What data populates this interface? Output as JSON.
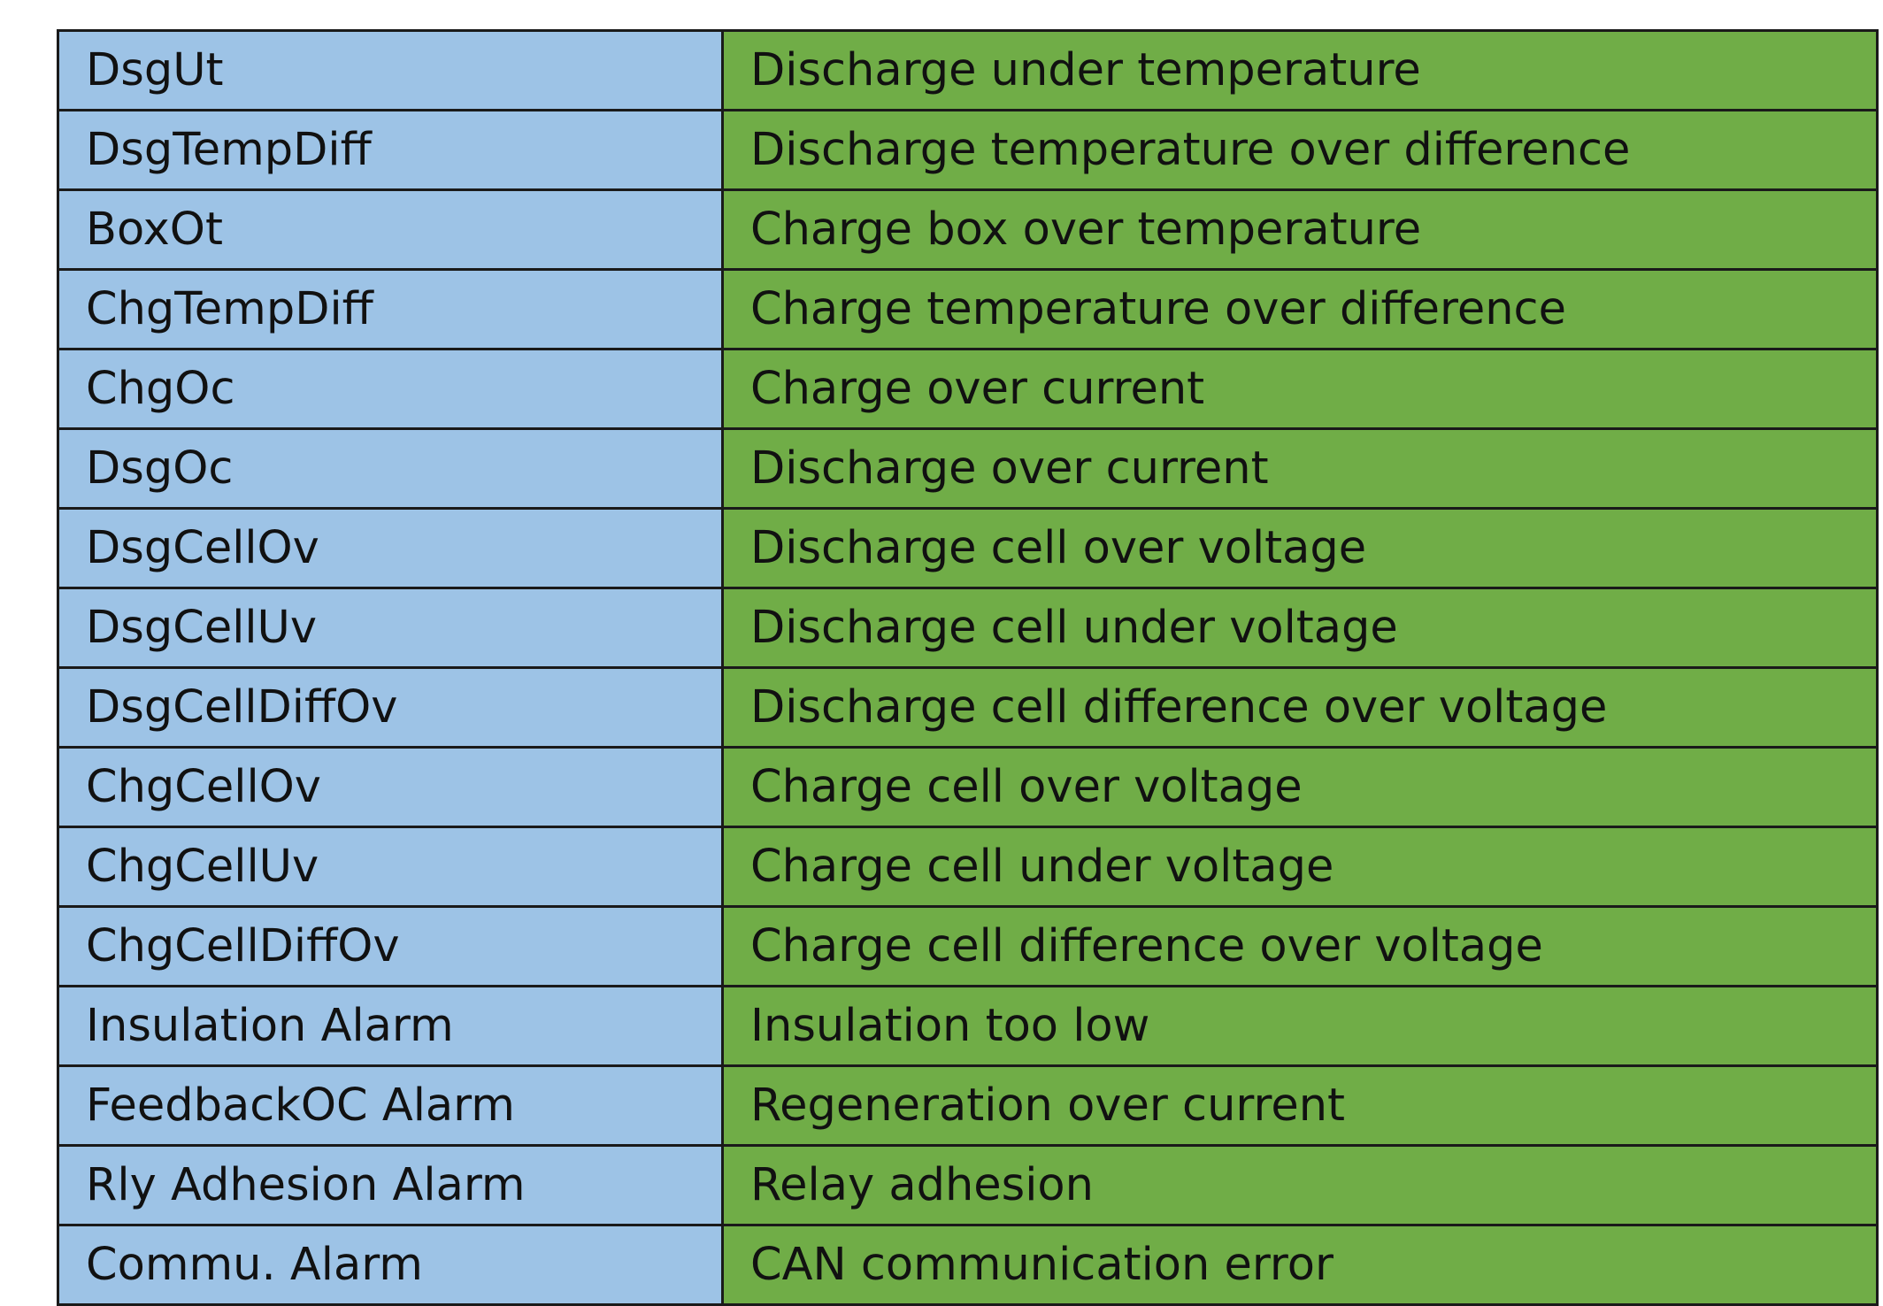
{
  "table": {
    "rows": [
      {
        "code": "DsgUt",
        "description": "Discharge under temperature"
      },
      {
        "code": "DsgTempDiff",
        "description": "Discharge temperature over difference"
      },
      {
        "code": "BoxOt",
        "description": "Charge box over temperature"
      },
      {
        "code": "ChgTempDiff",
        "description": "Charge temperature over difference"
      },
      {
        "code": "ChgOc",
        "description": "Charge over current"
      },
      {
        "code": "DsgOc",
        "description": "Discharge over current"
      },
      {
        "code": "DsgCellOv",
        "description": "Discharge cell over voltage"
      },
      {
        "code": "DsgCellUv",
        "description": "Discharge cell under voltage"
      },
      {
        "code": "DsgCellDiffOv",
        "description": "Discharge cell difference over voltage"
      },
      {
        "code": "ChgCellOv",
        "description": "Charge cell over voltage"
      },
      {
        "code": "ChgCellUv",
        "description": "Charge cell under voltage"
      },
      {
        "code": "ChgCellDiffOv",
        "description": "Charge cell difference over voltage"
      },
      {
        "code": "Insulation Alarm",
        "description": "Insulation too low"
      },
      {
        "code": "FeedbackOC Alarm",
        "description": "Regeneration over current"
      },
      {
        "code": "Rly Adhesion Alarm",
        "description": "Relay adhesion"
      },
      {
        "code": "Commu. Alarm",
        "description": "CAN communication error"
      }
    ]
  },
  "colors": {
    "code_column": "#9dc3e6",
    "description_column": "#70ad47",
    "border": "#1a1a1a"
  }
}
